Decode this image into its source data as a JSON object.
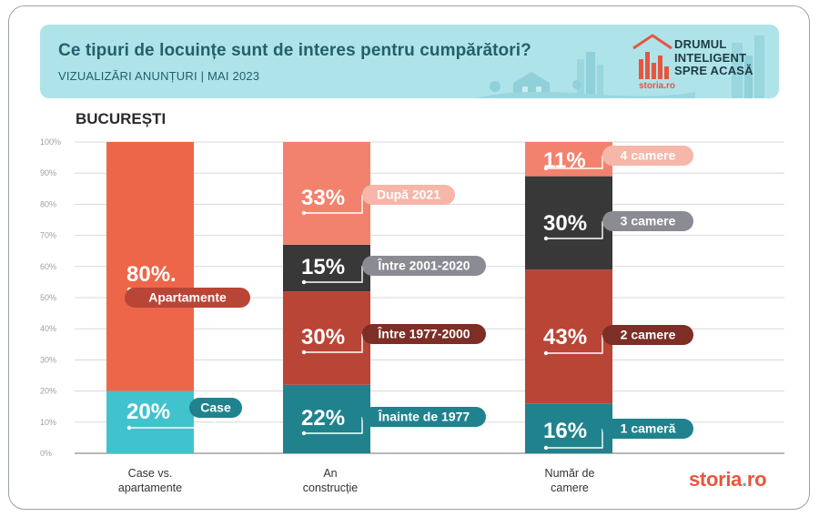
{
  "header": {
    "title": "Ce tipuri de locuințe sunt de interes pentru cumpărători?",
    "subtitle": "VIZUALIZĂRI ANUNȚURI | MAI 2023",
    "campaign_lines": [
      "DRUMUL",
      "INTELIGENT",
      "SPRE ACASĂ"
    ],
    "campaign_brand": "storia.ro"
  },
  "city_label": "BUCUREȘTI",
  "footer_logo": {
    "main": "storia",
    "dot": ".",
    "tld": "ro"
  },
  "colors": {
    "coral": "#ee6649",
    "salmon": "#f2826e",
    "teal_light": "#41c3cd",
    "teal_dark": "#20828d",
    "dark": "#383838",
    "red_brown": "#b94536",
    "title": "#22606b",
    "grid": "#d8d8d8"
  },
  "chart_data": {
    "type": "bar",
    "stacked": true,
    "ylim": [
      0,
      100
    ],
    "y_ticks": [
      "0%",
      "10%",
      "20%",
      "30%",
      "40%",
      "50%",
      "60%",
      "70%",
      "80%",
      "90%",
      "100%"
    ],
    "categories": [
      "Case vs.\napartamente",
      "An\nconstrucție",
      "Număr de\ncamere"
    ],
    "stacks": [
      {
        "category": "Case vs.\napartamente",
        "segments": [
          {
            "name": "Case",
            "value": 20,
            "label": "20%",
            "color": "#41c3cd",
            "tag_color": "#20828d"
          },
          {
            "name": "Apartamente",
            "value": 80,
            "label": "80%.",
            "color": "#ee6649",
            "tag_color": "#b94536"
          }
        ]
      },
      {
        "category": "An\nconstrucție",
        "segments": [
          {
            "name": "Înainte de 1977",
            "value": 22,
            "label": "22%",
            "color": "#20828d",
            "tag_color": "#20828d"
          },
          {
            "name": "Între 1977-2000",
            "value": 30,
            "label": "30%",
            "color": "#b94536",
            "tag_color": "#7d2e26"
          },
          {
            "name": "Între 2001-2020",
            "value": 15,
            "label": "15%",
            "color": "#383838",
            "tag_color": "#8b8b93"
          },
          {
            "name": "După 2021",
            "value": 33,
            "label": "33%",
            "color": "#f2826e",
            "tag_color": "#f6b6a9"
          }
        ]
      },
      {
        "category": "Număr de\ncamere",
        "segments": [
          {
            "name": "1 cameră",
            "value": 16,
            "label": "16%",
            "color": "#20828d",
            "tag_color": "#20828d"
          },
          {
            "name": "2 camere",
            "value": 43,
            "label": "43%",
            "color": "#b94536",
            "tag_color": "#7d2e26"
          },
          {
            "name": "3 camere",
            "value": 30,
            "label": "30%",
            "color": "#383838",
            "tag_color": "#8b8b93"
          },
          {
            "name": "4 camere",
            "value": 11,
            "label": "11%",
            "color": "#f2826e",
            "tag_color": "#f6b6a9"
          }
        ]
      }
    ]
  }
}
